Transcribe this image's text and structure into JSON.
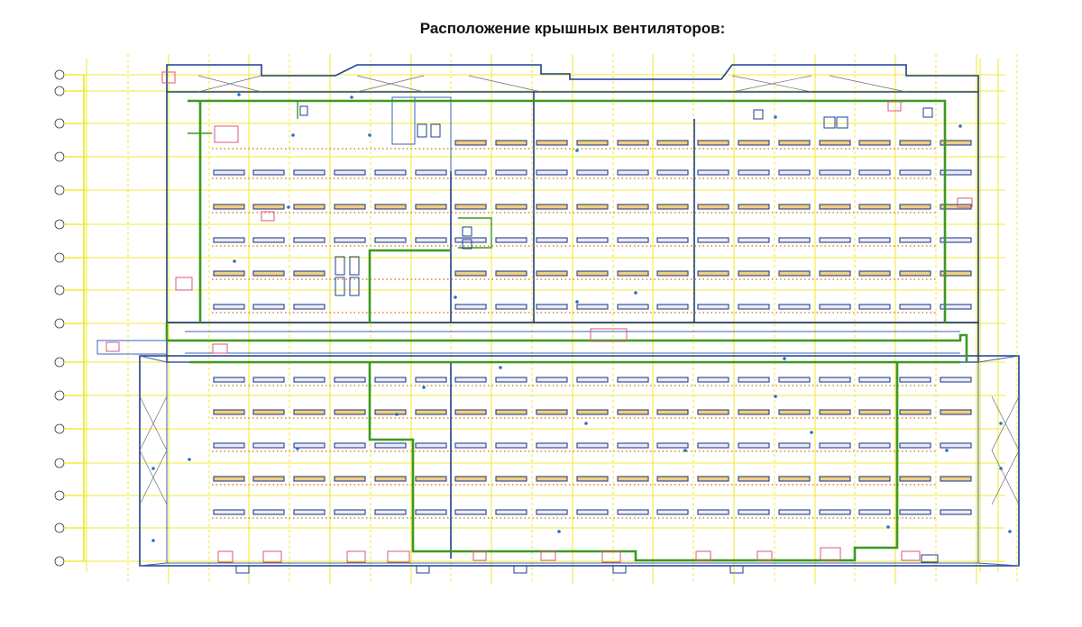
{
  "title": "Расположение крышных вентиляторов:",
  "colors": {
    "grid": "#f2ea3a",
    "walls": "#1f3f8f",
    "ventilation_zones": "#3b9a1e",
    "fans": "#2a3f8c",
    "equipment": "#d85a7a"
  },
  "icons": {
    "axis_marker": "circle-bubble-icon",
    "roof_fan": "rect-fan-icon"
  }
}
